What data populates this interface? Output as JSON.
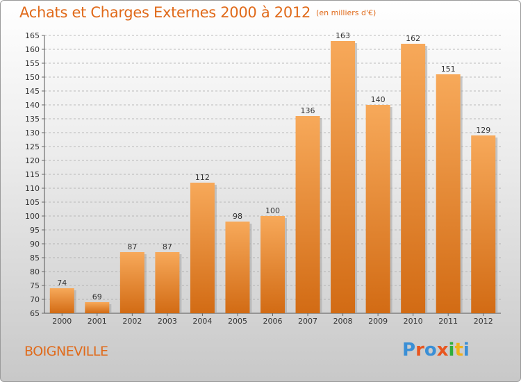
{
  "header": {
    "title": "Achats et Charges Externes 2000 à 2012",
    "subtitle": "(en milliers d'€)"
  },
  "footer": {
    "commune": "BOIGNEVILLE",
    "logo_text": "Proxiti",
    "logo_colors": [
      "#3a8fd6",
      "#e8561f",
      "#3a8fd6",
      "#e8561f",
      "#2fae3a",
      "#f0b21a",
      "#3a8fd6"
    ]
  },
  "colors": {
    "title": "#e06a1a",
    "bar_top": "#f7a95a",
    "bar_bottom": "#d26b14",
    "bar_shadow": "#a9a9a9",
    "grid": "#a8a8a8"
  },
  "chart_data": {
    "type": "bar",
    "title": "Achats et Charges Externes 2000 à 2012",
    "subtitle": "(en milliers d'€)",
    "categories": [
      "2000",
      "2001",
      "2002",
      "2003",
      "2004",
      "2005",
      "2006",
      "2007",
      "2008",
      "2009",
      "2010",
      "2011",
      "2012"
    ],
    "values": [
      74,
      69,
      87,
      87,
      112,
      98,
      100,
      136,
      163,
      140,
      162,
      151,
      129
    ],
    "ylim": [
      65,
      165
    ],
    "yticks": [
      65,
      70,
      75,
      80,
      85,
      90,
      95,
      100,
      105,
      110,
      115,
      120,
      125,
      130,
      135,
      140,
      145,
      150,
      155,
      160,
      165
    ],
    "grid": true,
    "xlabel": "",
    "ylabel": ""
  }
}
